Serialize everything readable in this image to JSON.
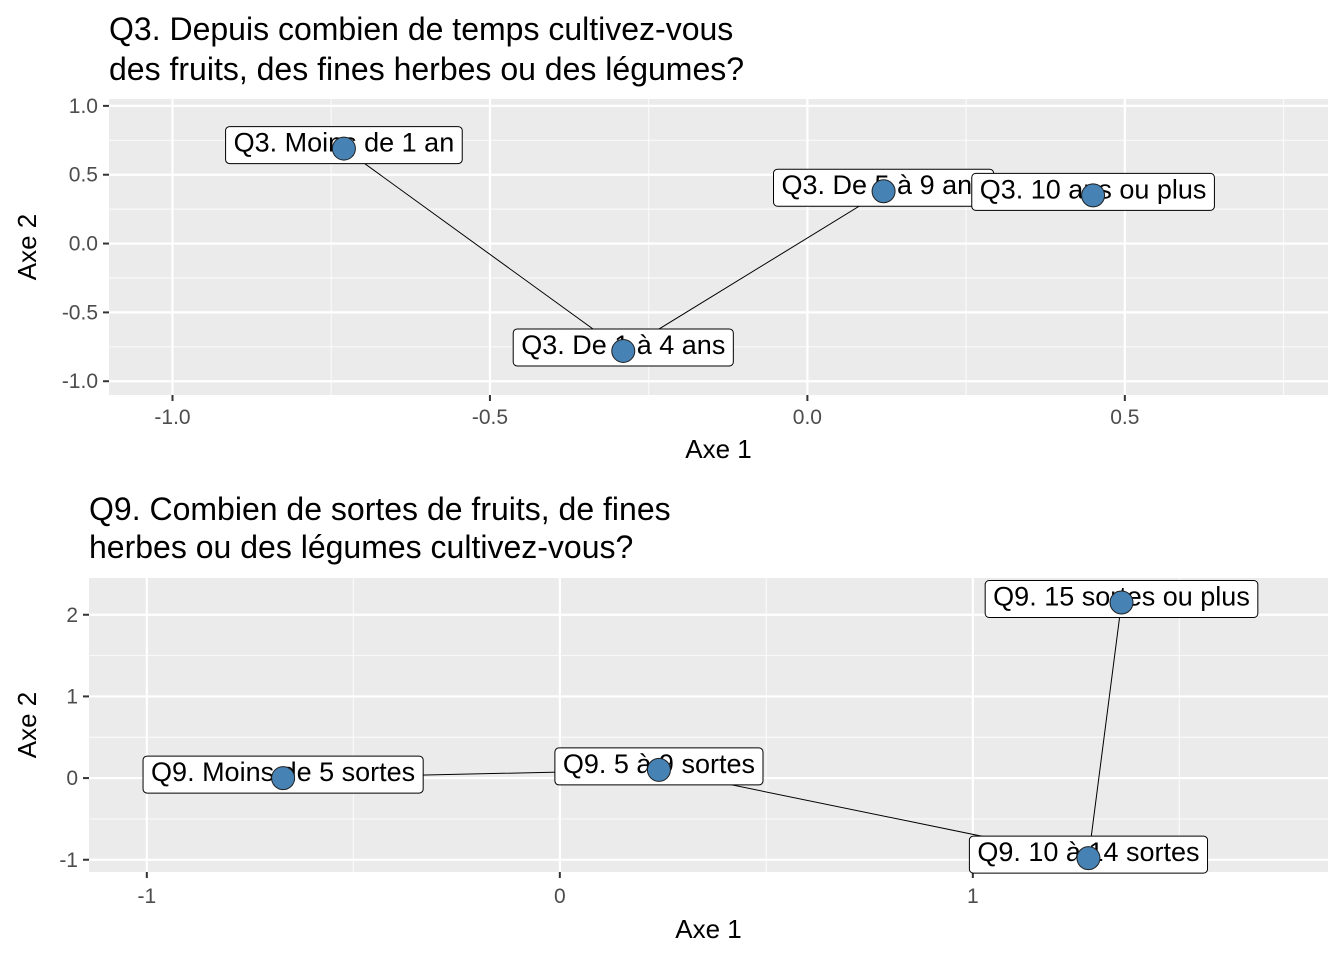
{
  "chart_data": [
    {
      "type": "scatter",
      "title_lines": [
        "Q3. Depuis combien de temps cultivez-vous",
        "des fruits, des fines herbes ou des légumes?"
      ],
      "xlabel": "Axe 1",
      "ylabel": "Axe 2",
      "xlim": [
        -1.1,
        0.82
      ],
      "ylim": [
        -1.1,
        1.05
      ],
      "x_ticks": [
        -1.0,
        -0.5,
        0.0,
        0.5
      ],
      "x_tick_labels": [
        "-1.0",
        "-0.5",
        "0.0",
        "0.5"
      ],
      "y_ticks": [
        1.0,
        0.5,
        0.0,
        -0.5,
        -1.0
      ],
      "y_tick_labels": [
        "1.0",
        "0.5",
        "0.0",
        "-0.5",
        "-1.0"
      ],
      "grid": true,
      "point_color": "#4682b4",
      "points": [
        {
          "label": "Q3. Moins de 1 an",
          "x": -0.73,
          "y": 0.69
        },
        {
          "label": "Q3. De 1 à 4 ans",
          "x": -0.29,
          "y": -0.78
        },
        {
          "label": "Q3. De 5 à 9 ans",
          "x": 0.12,
          "y": 0.38
        },
        {
          "label": "Q3. 10 ans ou plus",
          "x": 0.45,
          "y": 0.35
        }
      ]
    },
    {
      "type": "scatter",
      "title_lines": [
        "Q9. Combien de sortes de fruits, de fines",
        "herbes ou des légumes cultivez-vous?"
      ],
      "xlabel": "Axe 1",
      "ylabel": "Axe 2",
      "xlim": [
        -1.14,
        1.86
      ],
      "ylim": [
        -1.15,
        2.45
      ],
      "x_ticks": [
        -1,
        0,
        1
      ],
      "x_tick_labels": [
        "-1",
        "0",
        "1"
      ],
      "y_ticks": [
        2,
        1,
        0,
        -1
      ],
      "y_tick_labels": [
        "2",
        "1",
        "0",
        "-1"
      ],
      "grid": true,
      "point_color": "#4682b4",
      "points": [
        {
          "label": "Q9. Moins de 5 sortes",
          "x": -0.67,
          "y": 0.0
        },
        {
          "label": "Q9. 5 à 9 sortes",
          "x": 0.24,
          "y": 0.1
        },
        {
          "label": "Q9. 10 à 14 sortes",
          "x": 1.28,
          "y": -0.98
        },
        {
          "label": "Q9. 15 sortes ou plus",
          "x": 1.36,
          "y": 2.15
        }
      ]
    }
  ]
}
